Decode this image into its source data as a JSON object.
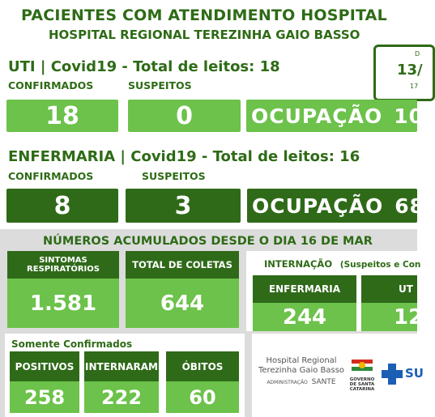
{
  "header": {
    "title": "PACIENTES COM ATENDIMENTO HOSPITAL",
    "subtitle": "HOSPITAL REGIONAL TEREZINHA GAIO BASSO",
    "date_top": "D",
    "date_main": "13/",
    "date_bottom": "17"
  },
  "uti": {
    "title": "UTI | Covid19 - Total de leitos: 18",
    "confirmados_label": "CONFIRMADOS",
    "suspeitos_label": "SUSPEITOS",
    "confirmados": "18",
    "suspeitos": "0",
    "ocupacao_label": "OCUPAÇÃO",
    "ocupacao_value": "10"
  },
  "enfermaria": {
    "title": "ENFERMARIA | Covid19 - Total de leitos: 16",
    "confirmados_label": "CONFIRMADOS",
    "suspeitos_label": "SUSPEITOS",
    "confirmados": "8",
    "suspeitos": "3",
    "ocupacao_label": "OCUPAÇÃO",
    "ocupacao_value": "68"
  },
  "acumulados": {
    "title": "NÚMEROS ACUMULADOS DESDE O DIA 16 DE MAR",
    "sintomas_label_1": "SINTOMAS",
    "sintomas_label_2": "RESPIRATÓRIOS",
    "sintomas_value": "1.581",
    "coletas_label": "TOTAL DE COLETAS",
    "coletas_value": "644",
    "internacao_label": "INTERNAÇÃO",
    "internacao_note": "(Suspeitos e Con",
    "enfermaria_label": "ENFERMARIA",
    "enfermaria_value": "244",
    "uti_label": "UT",
    "uti_value": "12",
    "somente_label": "Somente Confirmados",
    "positivos_label": "POSITIVOS",
    "positivos_value": "258",
    "internaram_label": "INTERNARAM",
    "internaram_value": "222",
    "obitos_label": "ÓBITOS",
    "obitos_value": "60"
  },
  "logos": {
    "hospital_line1": "Hospital Regional",
    "hospital_line2": "Terezinha Gaio Basso",
    "admin": "ADMINISTRAÇÃO",
    "sante": "SANTE",
    "gov_line1": "GOVERNO",
    "gov_line2": "DE SANTA",
    "gov_line3": "CATARINA",
    "sus": "SU"
  },
  "colors": {
    "dark_green": "#2f6a19",
    "light_green": "#6cc24a",
    "panel_gray": "#dcdcdc"
  }
}
